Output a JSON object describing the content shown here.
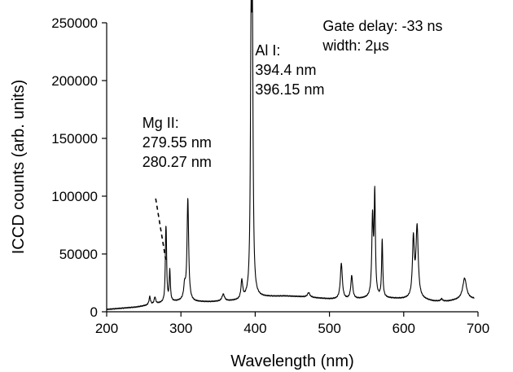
{
  "chart_data": {
    "type": "line",
    "title": "",
    "xlabel": "Wavelength (nm)",
    "ylabel": "ICCD counts (arb. units)",
    "xlim": [
      200,
      700
    ],
    "ylim": [
      0,
      250000
    ],
    "xticks": [
      200,
      300,
      400,
      500,
      600,
      700
    ],
    "yticks": [
      0,
      50000,
      100000,
      150000,
      200000,
      250000
    ],
    "grid": false,
    "legend": "none",
    "series": [
      {
        "color": "#000000",
        "baseline": [
          [
            200,
            2000
          ],
          [
            240,
            4000
          ],
          [
            260,
            6000
          ],
          [
            280,
            8000
          ],
          [
            300,
            9000
          ],
          [
            320,
            8500
          ],
          [
            340,
            8500
          ],
          [
            360,
            9000
          ],
          [
            380,
            9500
          ],
          [
            395,
            12000
          ],
          [
            420,
            13000
          ],
          [
            440,
            13500
          ],
          [
            460,
            13000
          ],
          [
            480,
            12000
          ],
          [
            500,
            11000
          ],
          [
            520,
            10500
          ],
          [
            540,
            11000
          ],
          [
            560,
            12000
          ],
          [
            580,
            11500
          ],
          [
            600,
            11000
          ],
          [
            620,
            11000
          ],
          [
            640,
            9000
          ],
          [
            660,
            9000
          ],
          [
            680,
            11000
          ],
          [
            695,
            11000
          ]
        ],
        "peaks": [
          [
            258,
            7000,
            1.2
          ],
          [
            265,
            6000,
            1.2
          ],
          [
            279.55,
            43000,
            0.8
          ],
          [
            280.27,
            35000,
            0.8
          ],
          [
            285,
            27000,
            0.9
          ],
          [
            305,
            12000,
            1.5
          ],
          [
            309.3,
            88000,
            1.3
          ],
          [
            357,
            6000,
            2.0
          ],
          [
            382,
            16000,
            1.4
          ],
          [
            394.4,
            192000,
            1.0
          ],
          [
            396.15,
            226000,
            1.1
          ],
          [
            472,
            4000,
            2.0
          ],
          [
            516,
            31000,
            1.6
          ],
          [
            530,
            20000,
            1.5
          ],
          [
            558,
            67000,
            1.2
          ],
          [
            561,
            87000,
            1.0
          ],
          [
            571,
            50000,
            0.9
          ],
          [
            613,
            50000,
            1.5
          ],
          [
            618,
            61000,
            1.8
          ],
          [
            651,
            2000,
            1.2
          ],
          [
            682,
            18000,
            3.0
          ]
        ]
      }
    ],
    "annotations": [
      {
        "lines": [
          "Mg II:",
          "279.55 nm",
          "280.27 nm"
        ],
        "x": 248,
        "y": 159000
      },
      {
        "lines": [
          "Al I:",
          "394.4 nm",
          "396.15 nm"
        ],
        "x": 400,
        "y": 222000
      },
      {
        "lines": [
          "Gate delay: -33 ns",
          "width: 2µs"
        ],
        "x": 491,
        "y": 243000
      }
    ],
    "leader": {
      "from": [
        266,
        98000
      ],
      "to": [
        279.55,
        45000
      ]
    }
  }
}
